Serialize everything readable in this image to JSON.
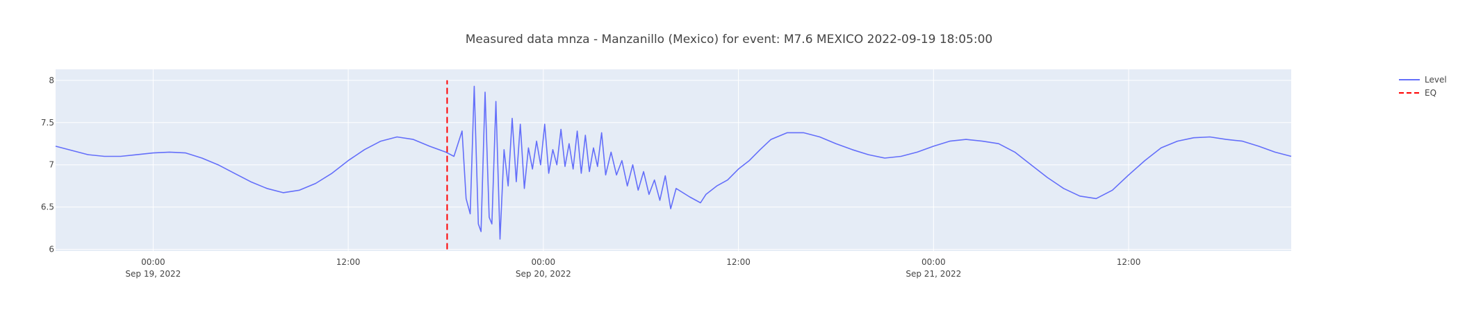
{
  "chart_data": {
    "type": "line",
    "title": "Measured data mnza - Manzanillo (Mexico)  for event: M7.6 MEXICO 2022-09-19 18:05:00",
    "xlabel": "",
    "ylabel": "",
    "x_range": [
      "2022-09-18 18:00",
      "2022-09-21 22:00"
    ],
    "ylim": [
      5.98,
      8.13
    ],
    "yticks": [
      6,
      6.5,
      7,
      7.5,
      8
    ],
    "xticks": [
      {
        "x": "2022-09-19 00:00",
        "label": "00:00",
        "sublabel": "Sep 19, 2022"
      },
      {
        "x": "2022-09-19 12:00",
        "label": "12:00",
        "sublabel": ""
      },
      {
        "x": "2022-09-20 00:00",
        "label": "00:00",
        "sublabel": "Sep 20, 2022"
      },
      {
        "x": "2022-09-20 12:00",
        "label": "12:00",
        "sublabel": ""
      },
      {
        "x": "2022-09-21 00:00",
        "label": "00:00",
        "sublabel": "Sep 21, 2022"
      },
      {
        "x": "2022-09-21 12:00",
        "label": "12:00",
        "sublabel": ""
      }
    ],
    "grid": true,
    "legend_placement": "top-right",
    "series": [
      {
        "name": "Level",
        "color": "#636efa",
        "dash": "solid",
        "points": [
          [
            "2022-09-18 18:00",
            7.22
          ],
          [
            "2022-09-18 19:00",
            7.17
          ],
          [
            "2022-09-18 20:00",
            7.12
          ],
          [
            "2022-09-18 21:00",
            7.1
          ],
          [
            "2022-09-18 22:00",
            7.1
          ],
          [
            "2022-09-18 23:00",
            7.12
          ],
          [
            "2022-09-19 00:00",
            7.14
          ],
          [
            "2022-09-19 01:00",
            7.15
          ],
          [
            "2022-09-19 02:00",
            7.14
          ],
          [
            "2022-09-19 03:00",
            7.08
          ],
          [
            "2022-09-19 04:00",
            7.0
          ],
          [
            "2022-09-19 05:00",
            6.9
          ],
          [
            "2022-09-19 06:00",
            6.8
          ],
          [
            "2022-09-19 07:00",
            6.72
          ],
          [
            "2022-09-19 08:00",
            6.67
          ],
          [
            "2022-09-19 09:00",
            6.7
          ],
          [
            "2022-09-19 10:00",
            6.78
          ],
          [
            "2022-09-19 11:00",
            6.9
          ],
          [
            "2022-09-19 12:00",
            7.05
          ],
          [
            "2022-09-19 13:00",
            7.18
          ],
          [
            "2022-09-19 14:00",
            7.28
          ],
          [
            "2022-09-19 15:00",
            7.33
          ],
          [
            "2022-09-19 16:00",
            7.3
          ],
          [
            "2022-09-19 17:00",
            7.22
          ],
          [
            "2022-09-19 18:00",
            7.15
          ],
          [
            "2022-09-19 18:30",
            7.1
          ],
          [
            "2022-09-19 19:00",
            7.4
          ],
          [
            "2022-09-19 19:15",
            6.6
          ],
          [
            "2022-09-19 19:30",
            6.42
          ],
          [
            "2022-09-19 19:45",
            7.93
          ],
          [
            "2022-09-19 20:00",
            6.3
          ],
          [
            "2022-09-19 20:10",
            6.21
          ],
          [
            "2022-09-19 20:25",
            7.86
          ],
          [
            "2022-09-19 20:40",
            6.38
          ],
          [
            "2022-09-19 20:50",
            6.3
          ],
          [
            "2022-09-19 21:05",
            7.75
          ],
          [
            "2022-09-19 21:20",
            6.12
          ],
          [
            "2022-09-19 21:35",
            7.18
          ],
          [
            "2022-09-19 21:50",
            6.75
          ],
          [
            "2022-09-19 22:05",
            7.55
          ],
          [
            "2022-09-19 22:20",
            6.8
          ],
          [
            "2022-09-19 22:35",
            7.48
          ],
          [
            "2022-09-19 22:50",
            6.72
          ],
          [
            "2022-09-19 23:05",
            7.2
          ],
          [
            "2022-09-19 23:20",
            6.95
          ],
          [
            "2022-09-19 23:35",
            7.28
          ],
          [
            "2022-09-19 23:50",
            7.0
          ],
          [
            "2022-09-20 00:05",
            7.48
          ],
          [
            "2022-09-20 00:20",
            6.9
          ],
          [
            "2022-09-20 00:35",
            7.18
          ],
          [
            "2022-09-20 00:50",
            7.0
          ],
          [
            "2022-09-20 01:05",
            7.42
          ],
          [
            "2022-09-20 01:20",
            6.98
          ],
          [
            "2022-09-20 01:35",
            7.25
          ],
          [
            "2022-09-20 01:50",
            6.95
          ],
          [
            "2022-09-20 02:05",
            7.4
          ],
          [
            "2022-09-20 02:20",
            6.9
          ],
          [
            "2022-09-20 02:35",
            7.35
          ],
          [
            "2022-09-20 02:50",
            6.92
          ],
          [
            "2022-09-20 03:05",
            7.2
          ],
          [
            "2022-09-20 03:20",
            6.98
          ],
          [
            "2022-09-20 03:35",
            7.38
          ],
          [
            "2022-09-20 03:50",
            6.88
          ],
          [
            "2022-09-20 04:10",
            7.15
          ],
          [
            "2022-09-20 04:30",
            6.88
          ],
          [
            "2022-09-20 04:50",
            7.05
          ],
          [
            "2022-09-20 05:10",
            6.75
          ],
          [
            "2022-09-20 05:30",
            7.0
          ],
          [
            "2022-09-20 05:50",
            6.7
          ],
          [
            "2022-09-20 06:10",
            6.92
          ],
          [
            "2022-09-20 06:30",
            6.65
          ],
          [
            "2022-09-20 06:50",
            6.82
          ],
          [
            "2022-09-20 07:10",
            6.58
          ],
          [
            "2022-09-20 07:30",
            6.87
          ],
          [
            "2022-09-20 07:50",
            6.48
          ],
          [
            "2022-09-20 08:10",
            6.72
          ],
          [
            "2022-09-20 09:00",
            6.62
          ],
          [
            "2022-09-20 09:40",
            6.55
          ],
          [
            "2022-09-20 10:00",
            6.65
          ],
          [
            "2022-09-20 10:40",
            6.75
          ],
          [
            "2022-09-20 11:20",
            6.82
          ],
          [
            "2022-09-20 12:00",
            6.95
          ],
          [
            "2022-09-20 12:40",
            7.05
          ],
          [
            "2022-09-20 13:20",
            7.18
          ],
          [
            "2022-09-20 14:00",
            7.3
          ],
          [
            "2022-09-20 15:00",
            7.38
          ],
          [
            "2022-09-20 16:00",
            7.38
          ],
          [
            "2022-09-20 17:00",
            7.33
          ],
          [
            "2022-09-20 18:00",
            7.25
          ],
          [
            "2022-09-20 19:00",
            7.18
          ],
          [
            "2022-09-20 20:00",
            7.12
          ],
          [
            "2022-09-20 21:00",
            7.08
          ],
          [
            "2022-09-20 22:00",
            7.1
          ],
          [
            "2022-09-20 23:00",
            7.15
          ],
          [
            "2022-09-21 00:00",
            7.22
          ],
          [
            "2022-09-21 01:00",
            7.28
          ],
          [
            "2022-09-21 02:00",
            7.3
          ],
          [
            "2022-09-21 03:00",
            7.28
          ],
          [
            "2022-09-21 04:00",
            7.25
          ],
          [
            "2022-09-21 05:00",
            7.15
          ],
          [
            "2022-09-21 06:00",
            7.0
          ],
          [
            "2022-09-21 07:00",
            6.85
          ],
          [
            "2022-09-21 08:00",
            6.72
          ],
          [
            "2022-09-21 09:00",
            6.63
          ],
          [
            "2022-09-21 10:00",
            6.6
          ],
          [
            "2022-09-21 11:00",
            6.7
          ],
          [
            "2022-09-21 12:00",
            6.88
          ],
          [
            "2022-09-21 13:00",
            7.05
          ],
          [
            "2022-09-21 14:00",
            7.2
          ],
          [
            "2022-09-21 15:00",
            7.28
          ],
          [
            "2022-09-21 16:00",
            7.32
          ],
          [
            "2022-09-21 17:00",
            7.33
          ],
          [
            "2022-09-21 18:00",
            7.3
          ],
          [
            "2022-09-21 19:00",
            7.28
          ],
          [
            "2022-09-21 20:00",
            7.22
          ],
          [
            "2022-09-21 21:00",
            7.15
          ],
          [
            "2022-09-21 22:00",
            7.1
          ]
        ]
      },
      {
        "name": "EQ",
        "color": "#ff0000",
        "dash": "dash",
        "points": [
          [
            "2022-09-19 18:05",
            6.0
          ],
          [
            "2022-09-19 18:05",
            8.0
          ]
        ]
      }
    ]
  }
}
